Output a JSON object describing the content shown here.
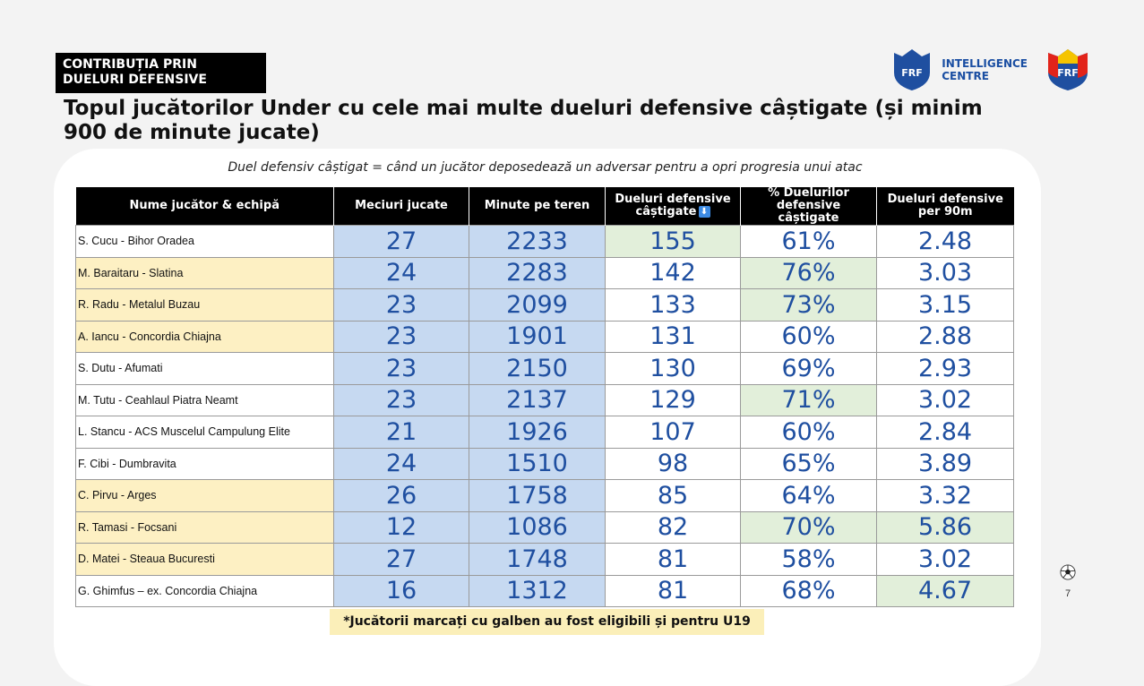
{
  "colors": {
    "blue_cell": "#c6d9f1",
    "yellow_cell": "#fdf0c3",
    "green_cell": "#e2efda",
    "white_cell": "#ffffff",
    "number_text": "#1f4fa0"
  },
  "header": {
    "tag_line1": "CONTRIBUȚIA PRIN",
    "tag_line2": "DUELURI DEFENSIVE",
    "title": "Topul jucătorilor Under cu cele mai multe dueluri defensive câștigate (și minim 900 de minute jucate)",
    "subtitle": "Duel defensiv câștigat = când un jucător deposedează un adversar pentru a opri progresia unui atac"
  },
  "logos": {
    "ic_line1": "INTELLIGENCE",
    "ic_line2": "CENTRE",
    "frf_text": "FRF",
    "icons": [
      "frf-shield-icon",
      "frf-crest-icon"
    ]
  },
  "table": {
    "columns": [
      "Nume jucător & echipă",
      "Meciuri jucate",
      "Minute pe teren",
      "Dueluri defensive câștigate",
      "% Duelurilor defensive câștigate",
      "Dueluri defensive per 90m"
    ],
    "sort_icon": "arrow-down-icon",
    "sort_glyph": "⬇",
    "rows": [
      {
        "name": "S. Cucu - Bihor Oradea",
        "u19": false,
        "values": [
          "27",
          "2233",
          "155",
          "61%",
          "2.48"
        ],
        "bg": [
          "blue",
          "blue",
          "green",
          "white",
          "white"
        ]
      },
      {
        "name": "M. Baraitaru - Slatina",
        "u19": true,
        "values": [
          "24",
          "2283",
          "142",
          "76%",
          "3.03"
        ],
        "bg": [
          "blue",
          "blue",
          "white",
          "green",
          "white"
        ]
      },
      {
        "name": "R. Radu - Metalul Buzau",
        "u19": true,
        "values": [
          "23",
          "2099",
          "133",
          "73%",
          "3.15"
        ],
        "bg": [
          "blue",
          "blue",
          "white",
          "green",
          "white"
        ]
      },
      {
        "name": "A. Iancu - Concordia Chiajna",
        "u19": true,
        "values": [
          "23",
          "1901",
          "131",
          "60%",
          "2.88"
        ],
        "bg": [
          "blue",
          "blue",
          "white",
          "white",
          "white"
        ]
      },
      {
        "name": "S. Dutu - Afumati",
        "u19": false,
        "values": [
          "23",
          "2150",
          "130",
          "69%",
          "2.93"
        ],
        "bg": [
          "blue",
          "blue",
          "white",
          "white",
          "white"
        ]
      },
      {
        "name": "M. Tutu - Ceahlaul Piatra Neamt",
        "u19": false,
        "values": [
          "23",
          "2137",
          "129",
          "71%",
          "3.02"
        ],
        "bg": [
          "blue",
          "blue",
          "white",
          "green",
          "white"
        ]
      },
      {
        "name": "L. Stancu - ACS Muscelul Campulung Elite",
        "u19": false,
        "values": [
          "21",
          "1926",
          "107",
          "60%",
          "2.84"
        ],
        "bg": [
          "blue",
          "blue",
          "white",
          "white",
          "white"
        ]
      },
      {
        "name": "F. Cibi - Dumbravita",
        "u19": false,
        "values": [
          "24",
          "1510",
          "98",
          "65%",
          "3.89"
        ],
        "bg": [
          "blue",
          "blue",
          "white",
          "white",
          "white"
        ]
      },
      {
        "name": "C. Pirvu - Arges",
        "u19": true,
        "values": [
          "26",
          "1758",
          "85",
          "64%",
          "3.32"
        ],
        "bg": [
          "blue",
          "blue",
          "white",
          "white",
          "white"
        ]
      },
      {
        "name": "R. Tamasi - Focsani",
        "u19": true,
        "values": [
          "12",
          "1086",
          "82",
          "70%",
          "5.86"
        ],
        "bg": [
          "blue",
          "blue",
          "white",
          "green",
          "green"
        ]
      },
      {
        "name": "D. Matei - Steaua Bucuresti",
        "u19": true,
        "values": [
          "27",
          "1748",
          "81",
          "58%",
          "3.02"
        ],
        "bg": [
          "blue",
          "blue",
          "white",
          "white",
          "white"
        ]
      },
      {
        "name": "G. Ghimfus – ex. Concordia Chiajna",
        "u19": false,
        "values": [
          "16",
          "1312",
          "81",
          "68%",
          "4.67"
        ],
        "bg": [
          "blue",
          "blue",
          "white",
          "white",
          "green"
        ]
      }
    ]
  },
  "footnote": "*Jucătorii marcați cu galben au fost eligibili și pentru U19",
  "page_number": "7",
  "ball_icon": "soccer-ball-icon"
}
